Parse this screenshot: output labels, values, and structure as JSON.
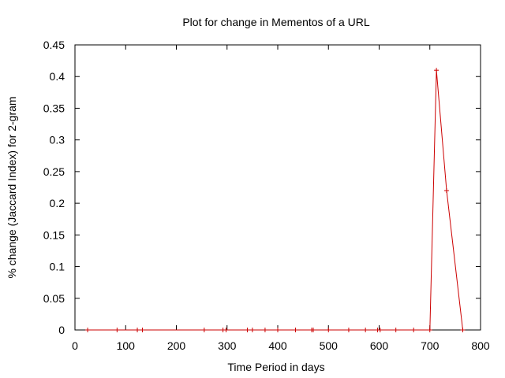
{
  "chart_data": {
    "type": "line",
    "title": "Plot for change in Mementos of a URL",
    "xlabel": "Time Period in days",
    "ylabel": "% change (Jaccard Index) for 2-gram",
    "xlim": [
      0,
      800
    ],
    "ylim": [
      0,
      0.45
    ],
    "xticks": [
      0,
      100,
      200,
      300,
      400,
      500,
      600,
      700,
      800
    ],
    "xtick_labels": [
      "0",
      "100",
      "200",
      "300",
      "400",
      "500",
      "600",
      "700",
      "800"
    ],
    "yticks": [
      0,
      0.05,
      0.1,
      0.15,
      0.2,
      0.25,
      0.3,
      0.35,
      0.4,
      0.45
    ],
    "ytick_labels": [
      "0",
      "0.05",
      "0.1",
      "0.15",
      "0.2",
      "0.25",
      "0.3",
      "0.35",
      "0.4",
      "0.45"
    ],
    "grid": false,
    "legend": "none",
    "series": [
      {
        "color": "#cc0000",
        "marker": "plus",
        "x": [
          25,
          83,
          123,
          133,
          255,
          292,
          298,
          340,
          350,
          375,
          400,
          435,
          467,
          470,
          500,
          540,
          573,
          597,
          602,
          633,
          668,
          700,
          713,
          733,
          765
        ],
        "y": [
          0,
          0,
          0,
          0,
          0,
          0,
          0,
          0,
          0,
          0,
          0,
          0,
          0,
          0,
          0,
          0,
          0,
          0,
          0,
          0,
          0,
          0,
          0.41,
          0.22,
          0
        ]
      }
    ]
  }
}
